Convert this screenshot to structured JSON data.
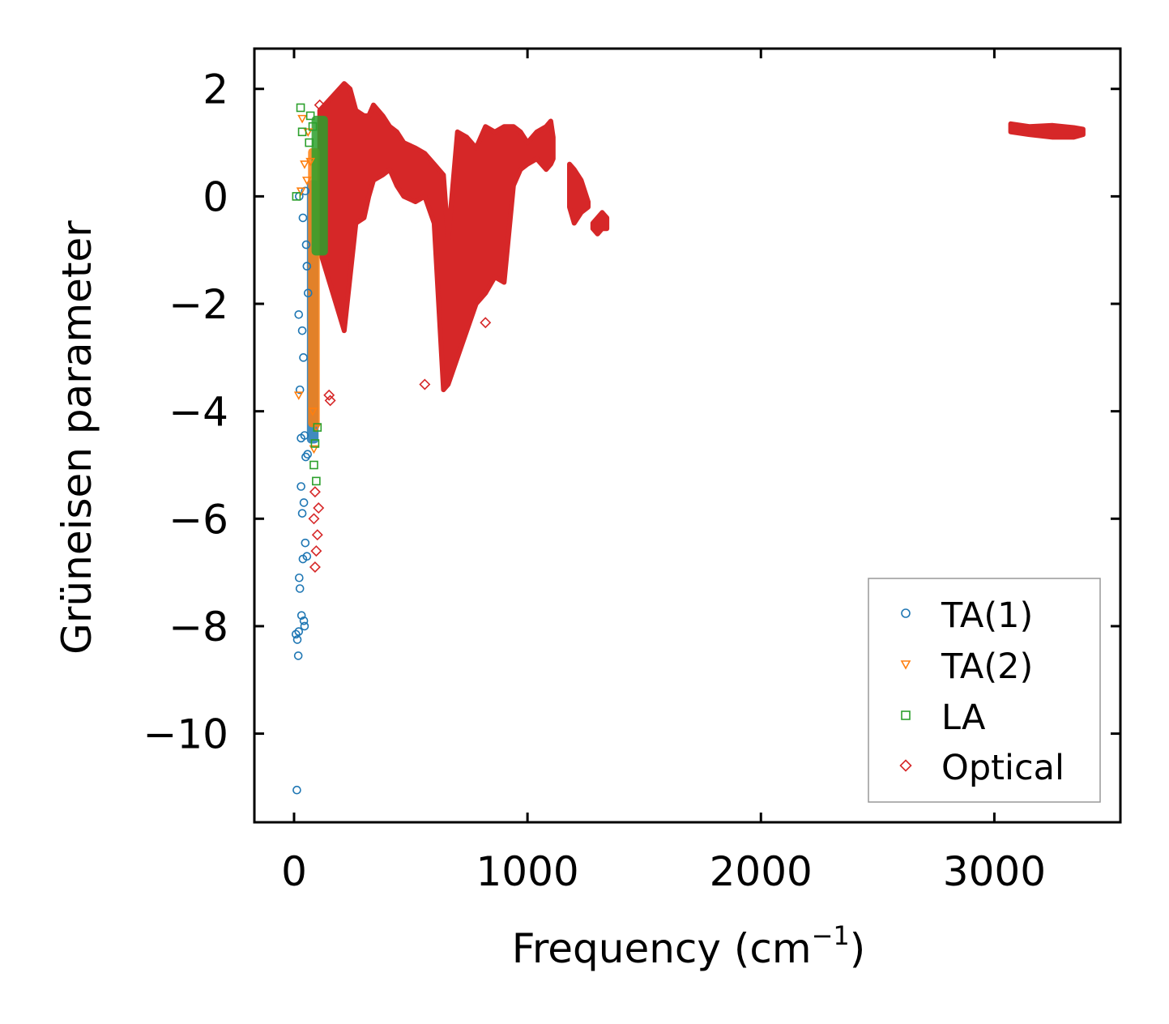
{
  "chart_data": {
    "type": "scatter",
    "xlabel": "Frequency (cm",
    "xlabel_sup": "−1",
    "xlabel_close": ")",
    "ylabel": "Grüneisen parameter",
    "xlim": [
      -170,
      3540
    ],
    "ylim": [
      -11.65,
      2.75
    ],
    "xticks": [
      0,
      1000,
      2000,
      3000
    ],
    "xtick_labels": [
      "0",
      "1000",
      "2000",
      "3000"
    ],
    "yticks": [
      2,
      0,
      -2,
      -4,
      -6,
      -8,
      -10
    ],
    "ytick_labels": [
      "2",
      "0",
      "−2",
      "−4",
      "−6",
      "−8",
      "−10"
    ],
    "grid": false,
    "legend_position": "lower-right",
    "series": [
      {
        "name": "TA(1)",
        "marker": "circle",
        "color": "#1f77b4",
        "points": [
          [
            12,
            -11.05
          ],
          [
            18,
            -8.55
          ],
          [
            14,
            -8.25
          ],
          [
            8,
            -8.15
          ],
          [
            20,
            -8.1
          ],
          [
            45,
            -8.0
          ],
          [
            42,
            -7.9
          ],
          [
            32,
            -7.8
          ],
          [
            25,
            -7.3
          ],
          [
            22,
            -7.1
          ],
          [
            38,
            -6.75
          ],
          [
            55,
            -6.7
          ],
          [
            48,
            -6.45
          ],
          [
            35,
            -5.9
          ],
          [
            42,
            -5.7
          ],
          [
            30,
            -5.4
          ],
          [
            50,
            -4.85
          ],
          [
            58,
            -4.8
          ],
          [
            30,
            -4.5
          ],
          [
            45,
            -4.45
          ],
          [
            25,
            -3.6
          ],
          [
            20,
            -2.2
          ],
          [
            22,
            0.0
          ],
          [
            38,
            -0.4
          ],
          [
            48,
            0.1
          ],
          [
            52,
            -0.9
          ],
          [
            55,
            -1.3
          ],
          [
            60,
            -1.8
          ],
          [
            35,
            -2.5
          ],
          [
            40,
            -3.0
          ]
        ],
        "band": {
          "x_min": 55,
          "x_max": 105,
          "y_min": -4.6,
          "y_max": 0.3
        }
      },
      {
        "name": "TA(2)",
        "marker": "triangle-down",
        "color": "#ff7f0e",
        "points": [
          [
            35,
            1.45
          ],
          [
            60,
            1.2
          ],
          [
            70,
            0.65
          ],
          [
            45,
            0.6
          ],
          [
            55,
            0.3
          ],
          [
            30,
            0.1
          ],
          [
            20,
            -3.7
          ],
          [
            80,
            -4.0
          ],
          [
            95,
            -4.3
          ],
          [
            85,
            -4.7
          ]
        ],
        "band": {
          "x_min": 60,
          "x_max": 110,
          "y_min": -4.3,
          "y_max": 0.9
        }
      },
      {
        "name": "LA",
        "marker": "square",
        "color": "#2ca02c",
        "points": [
          [
            28,
            1.65
          ],
          [
            70,
            1.5
          ],
          [
            80,
            1.3
          ],
          [
            65,
            1.0
          ],
          [
            35,
            1.2
          ],
          [
            10,
            0.0
          ],
          [
            85,
            -5.0
          ],
          [
            90,
            -4.6
          ],
          [
            95,
            -5.3
          ],
          [
            100,
            -4.3
          ]
        ],
        "band": {
          "x_min": 75,
          "x_max": 145,
          "y_min": -1.1,
          "y_max": 1.5
        }
      },
      {
        "name": "Optical",
        "marker": "diamond",
        "color": "#d62728",
        "points": [
          [
            110,
            1.7
          ],
          [
            90,
            -6.9
          ],
          [
            95,
            -6.6
          ],
          [
            100,
            -6.3
          ],
          [
            85,
            -6.0
          ],
          [
            105,
            -5.8
          ],
          [
            90,
            -5.5
          ],
          [
            150,
            -3.7
          ],
          [
            155,
            -3.8
          ],
          [
            820,
            -2.35
          ],
          [
            560,
            -3.5
          ]
        ],
        "bands": [
          {
            "x": [
              110,
              215,
              240,
              265,
              300,
              320,
              340,
              380,
              410,
              440,
              470,
              520,
              560,
              600,
              640,
              660,
              700,
              740,
              780,
              820,
              860,
              900,
              940,
              970,
              1000,
              1040,
              1080,
              1100,
              1110
            ],
            "lo": [
              -1.0,
              -2.5,
              -1.5,
              -0.5,
              -0.4,
              0.0,
              0.3,
              0.4,
              0.5,
              0.2,
              0.0,
              -0.1,
              0.0,
              -0.5,
              -3.6,
              -3.5,
              -3.0,
              -2.5,
              -2.0,
              -1.8,
              -1.5,
              -1.6,
              0.2,
              0.5,
              0.6,
              0.7,
              0.5,
              0.6,
              0.7
            ],
            "hi": [
              1.6,
              2.1,
              2.0,
              1.6,
              1.5,
              1.5,
              1.7,
              1.5,
              1.3,
              1.2,
              1.0,
              0.9,
              0.8,
              0.6,
              0.4,
              -0.8,
              1.2,
              1.1,
              0.9,
              1.3,
              1.2,
              1.3,
              1.3,
              1.2,
              1.0,
              1.2,
              1.3,
              1.4,
              1.1
            ]
          },
          {
            "x": [
              1180,
              1200,
              1230,
              1260
            ],
            "lo": [
              -0.2,
              -0.5,
              -0.3,
              -0.2
            ],
            "hi": [
              0.6,
              0.5,
              0.3,
              -0.1
            ]
          },
          {
            "x": [
              1280,
              1300,
              1320,
              1340
            ],
            "lo": [
              -0.6,
              -0.7,
              -0.6,
              -0.6
            ],
            "hi": [
              -0.5,
              -0.4,
              -0.3,
              -0.4
            ]
          },
          {
            "x": [
              3070,
              3150,
              3250,
              3340,
              3380
            ],
            "lo": [
              1.2,
              1.15,
              1.1,
              1.1,
              1.15
            ],
            "hi": [
              1.35,
              1.3,
              1.32,
              1.28,
              1.25
            ]
          }
        ]
      }
    ]
  }
}
